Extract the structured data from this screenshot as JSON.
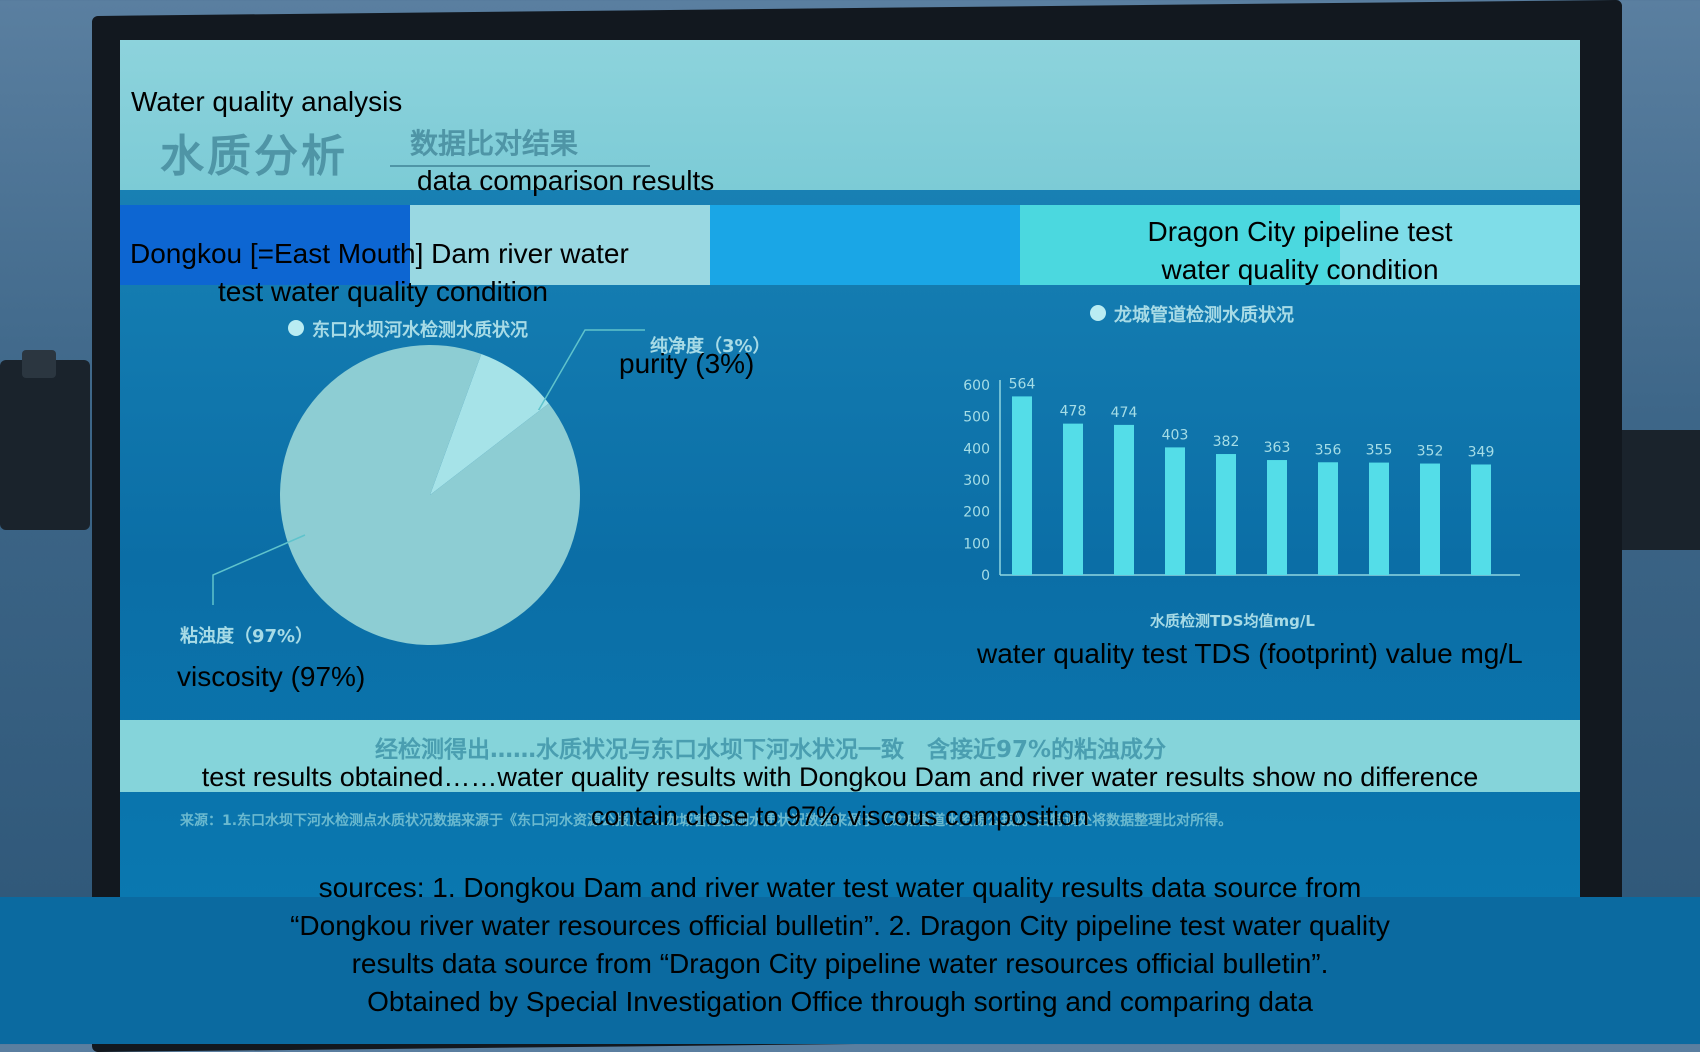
{
  "overlay": {
    "title_en": "Water quality analysis",
    "subtitle_en": "data comparison results",
    "left_heading_en": "Dongkou [=East Mouth] Dam river water test water quality condition",
    "left_heading_en_line1": "Dongkou [=East Mouth] Dam river water",
    "left_heading_en_line2": "test water quality condition",
    "right_heading_en_line1": "Dragon City pipeline test",
    "right_heading_en_line2": "water quality condition",
    "purity_en": "purity (3%)",
    "viscosity_en": "viscosity (97%)",
    "axis_label_en": "water quality test TDS (footprint) value mg/L",
    "conclusion_en_line1": "test results obtained……water quality results with Dongkou Dam and river water results show no difference",
    "conclusion_en_line2": "contain close to 97% viscous composition",
    "sources_en_line1": "sources: 1. Dongkou Dam and river water test water quality results data source from",
    "sources_en_line2": "“Dongkou river water resources official bulletin”.  2. Dragon City pipeline test water quality",
    "sources_en_line3": "results data source from “Dragon City pipeline water resources official bulletin”.",
    "sources_en_line4": "Obtained by Special Investigation Office through sorting and comparing data"
  },
  "screen": {
    "title_cn": "水质分析",
    "subtitle_cn": "数据比对结果",
    "left_heading_cn": "东口水坝河水检测水质状况",
    "right_heading_cn": "龙城管道检测水质状况",
    "purity_cn": "纯净度（3%）",
    "viscosity_cn": "粘浊度（97%）",
    "axis_label_cn": "水质检测TDS均值mg/L",
    "conclusion_cn": "经检测得出……水质状况与东口水坝下河水状况一致　含接近97%的粘浊成分",
    "source_cn": "来源：1.东口水坝下河水检测点水质状况数据来源于《东口河水资源公报》。2.龙城管道检测水质状况数据来源于《龙城管道水资源公报》。由特调处将数据整理比对所得。"
  },
  "chart_data": [
    {
      "type": "pie",
      "labels": [
        "纯净度（3%）",
        "粘浊度（97%）"
      ],
      "values": [
        3,
        97
      ],
      "colors": [
        "#a6e3e8",
        "#8dcdd3"
      ]
    },
    {
      "type": "bar",
      "categories": [
        "",
        "",
        "",
        "",
        "",
        "",
        "",
        "",
        "",
        ""
      ],
      "values": [
        564,
        478,
        474,
        403,
        382,
        363,
        356,
        355,
        352,
        349
      ],
      "ylim": [
        0,
        600
      ],
      "yticks": [
        0,
        100,
        200,
        300,
        400,
        500,
        600
      ],
      "xlabel": "水质检测TDS均值mg/L",
      "color": "#54dde8"
    }
  ]
}
